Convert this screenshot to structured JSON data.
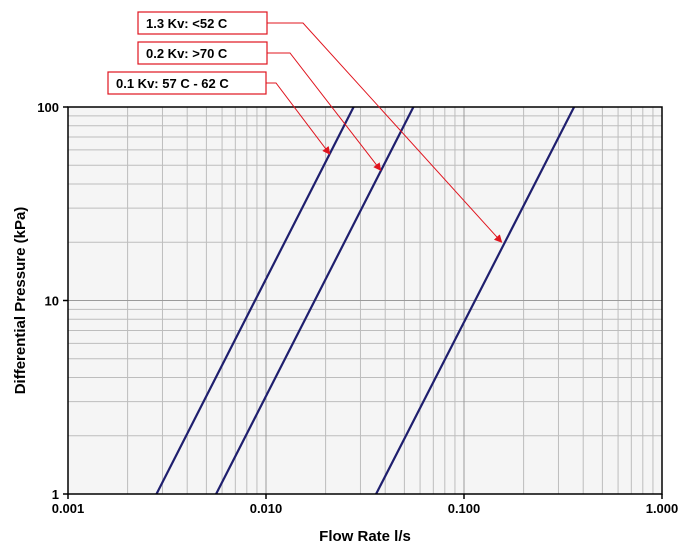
{
  "chart_data": {
    "type": "line",
    "title": "",
    "xlabel": "Flow Rate l/s",
    "ylabel": "Differential Pressure (kPa)",
    "x_scale": "log",
    "y_scale": "log",
    "xlim": [
      0.001,
      1.0
    ],
    "ylim": [
      1,
      100
    ],
    "x_ticks": [
      "0.001",
      "0.010",
      "0.100",
      "1.000"
    ],
    "y_ticks": [
      "1",
      "10",
      "100"
    ],
    "grid": true,
    "legend": "none",
    "series": [
      {
        "name": "0.1 Kv: 57 C - 62 C",
        "x": [
          0.0028,
          0.0277
        ],
        "y": [
          1,
          100
        ]
      },
      {
        "name": "0.2 Kv: >70 C",
        "x": [
          0.0056,
          0.0555
        ],
        "y": [
          1,
          100
        ]
      },
      {
        "name": "1.3 Kv: <52 C",
        "x": [
          0.036,
          0.36
        ],
        "y": [
          1,
          100
        ]
      }
    ],
    "annotations": [
      {
        "text": "1.3 Kv: <52 C",
        "target": {
          "x": 0.155,
          "y": 20
        }
      },
      {
        "text": "0.2 Kv: >70 C",
        "target": {
          "x": 0.038,
          "y": 47
        }
      },
      {
        "text": "0.1 Kv: 57 C - 62 C",
        "target": {
          "x": 0.021,
          "y": 57
        }
      }
    ],
    "colors": {
      "line": "#1f1f6e",
      "arrow": "#e0141e",
      "grid": "#bdbdbd",
      "callout_border": "#e0141e"
    }
  }
}
